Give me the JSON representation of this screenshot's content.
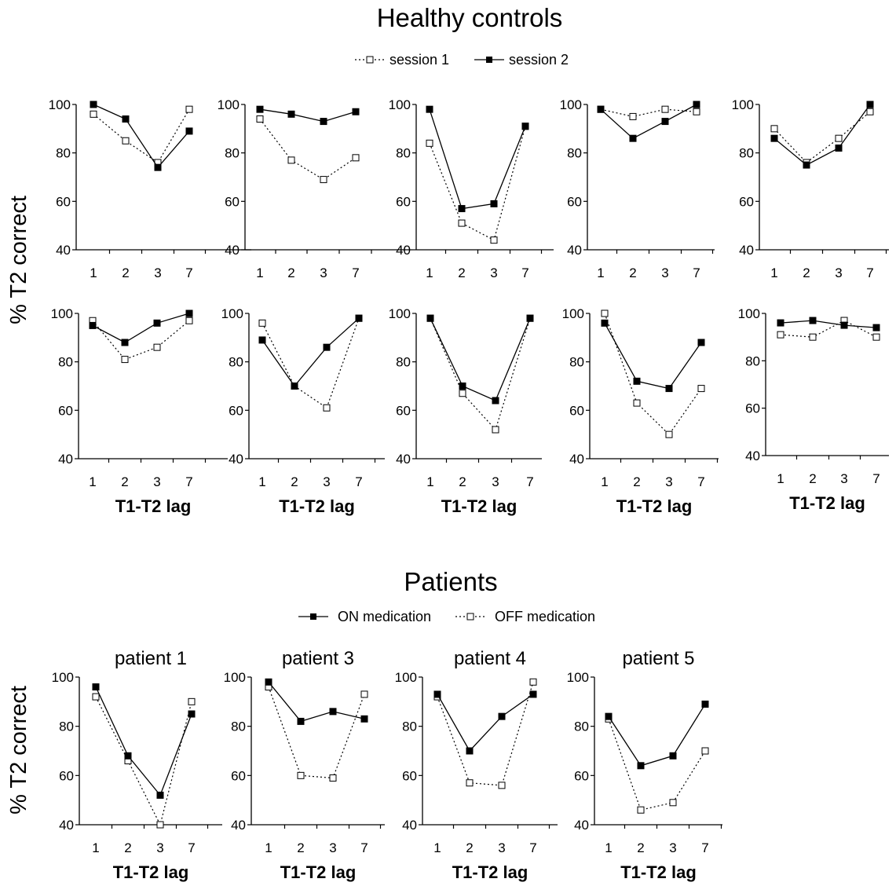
{
  "sections": {
    "controls": {
      "title": "Healthy controls",
      "legend": [
        {
          "label": "session 1",
          "style": "dotted-open"
        },
        {
          "label": "session 2",
          "style": "solid-filled"
        }
      ],
      "ylabel": "% T2 correct"
    },
    "patients": {
      "title": "Patients",
      "legend": [
        {
          "label": "ON medication",
          "style": "solid-filled"
        },
        {
          "label": "OFF medication",
          "style": "dotted-open"
        }
      ],
      "ylabel": "% T2 correct"
    }
  },
  "chart_data": [
    {
      "type": "line",
      "group": "controls",
      "title": "",
      "xlabel": "",
      "ylabel": "% T2 correct",
      "categories": [
        "1",
        "2",
        "3",
        "7"
      ],
      "ylim": [
        40,
        100
      ],
      "yticks": [
        "40",
        "60",
        "80",
        "100"
      ],
      "series": [
        {
          "name": "session 1",
          "values": [
            96,
            85,
            76,
            98
          ]
        },
        {
          "name": "session 2",
          "values": [
            100,
            94,
            74,
            89
          ]
        }
      ]
    },
    {
      "type": "line",
      "group": "controls",
      "title": "",
      "xlabel": "",
      "ylabel": "",
      "categories": [
        "1",
        "2",
        "3",
        "7"
      ],
      "ylim": [
        40,
        100
      ],
      "yticks": [
        "40",
        "60",
        "80",
        "100"
      ],
      "series": [
        {
          "name": "session 1",
          "values": [
            94,
            77,
            69,
            78
          ]
        },
        {
          "name": "session 2",
          "values": [
            98,
            96,
            93,
            97
          ]
        }
      ]
    },
    {
      "type": "line",
      "group": "controls",
      "title": "",
      "xlabel": "",
      "ylabel": "",
      "categories": [
        "1",
        "2",
        "3",
        "7"
      ],
      "ylim": [
        40,
        100
      ],
      "yticks": [
        "40",
        "60",
        "80",
        "100"
      ],
      "series": [
        {
          "name": "session 1",
          "values": [
            84,
            51,
            44,
            91
          ]
        },
        {
          "name": "session 2",
          "values": [
            98,
            57,
            59,
            91
          ]
        }
      ]
    },
    {
      "type": "line",
      "group": "controls",
      "title": "",
      "xlabel": "",
      "ylabel": "",
      "categories": [
        "1",
        "2",
        "3",
        "7"
      ],
      "ylim": [
        40,
        100
      ],
      "yticks": [
        "40",
        "60",
        "80",
        "100"
      ],
      "series": [
        {
          "name": "session 1",
          "values": [
            98,
            95,
            98,
            97
          ]
        },
        {
          "name": "session 2",
          "values": [
            98,
            86,
            93,
            100
          ]
        }
      ]
    },
    {
      "type": "line",
      "group": "controls",
      "title": "",
      "xlabel": "",
      "ylabel": "",
      "categories": [
        "1",
        "2",
        "3",
        "7"
      ],
      "ylim": [
        40,
        100
      ],
      "yticks": [
        "40",
        "60",
        "80",
        "100"
      ],
      "series": [
        {
          "name": "session 1",
          "values": [
            90,
            76,
            86,
            97
          ]
        },
        {
          "name": "session 2",
          "values": [
            86,
            75,
            82,
            100
          ]
        }
      ]
    },
    {
      "type": "line",
      "group": "controls",
      "title": "",
      "xlabel": "T1-T2 lag",
      "ylabel": "% T2 correct",
      "categories": [
        "1",
        "2",
        "3",
        "7"
      ],
      "ylim": [
        40,
        100
      ],
      "yticks": [
        "40",
        "60",
        "80",
        "100"
      ],
      "series": [
        {
          "name": "session 1",
          "values": [
            97,
            81,
            86,
            97
          ]
        },
        {
          "name": "session 2",
          "values": [
            95,
            88,
            96,
            100
          ]
        }
      ]
    },
    {
      "type": "line",
      "group": "controls",
      "title": "",
      "xlabel": "T1-T2 lag",
      "ylabel": "",
      "categories": [
        "1",
        "2",
        "3",
        "7"
      ],
      "ylim": [
        40,
        100
      ],
      "yticks": [
        "40",
        "60",
        "80",
        "100"
      ],
      "series": [
        {
          "name": "session 1",
          "values": [
            96,
            70,
            61,
            98
          ]
        },
        {
          "name": "session 2",
          "values": [
            89,
            70,
            86,
            98
          ]
        }
      ]
    },
    {
      "type": "line",
      "group": "controls",
      "title": "",
      "xlabel": "T1-T2 lag",
      "ylabel": "",
      "categories": [
        "1",
        "2",
        "3",
        "7"
      ],
      "ylim": [
        40,
        100
      ],
      "yticks": [
        "40",
        "60",
        "80",
        "100"
      ],
      "series": [
        {
          "name": "session 1",
          "values": [
            98,
            67,
            52,
            98
          ]
        },
        {
          "name": "session 2",
          "values": [
            98,
            70,
            64,
            98
          ]
        }
      ]
    },
    {
      "type": "line",
      "group": "controls",
      "title": "",
      "xlabel": "T1-T2 lag",
      "ylabel": "",
      "categories": [
        "1",
        "2",
        "3",
        "7"
      ],
      "ylim": [
        40,
        100
      ],
      "yticks": [
        "40",
        "60",
        "80",
        "100"
      ],
      "series": [
        {
          "name": "session 1",
          "values": [
            100,
            63,
            50,
            69
          ]
        },
        {
          "name": "session 2",
          "values": [
            96,
            72,
            69,
            88
          ]
        }
      ]
    },
    {
      "type": "line",
      "group": "controls",
      "title": "",
      "xlabel": "T1-T2 lag",
      "ylabel": "",
      "categories": [
        "1",
        "2",
        "3",
        "7"
      ],
      "ylim": [
        40,
        100
      ],
      "yticks": [
        "40",
        "60",
        "80",
        "100"
      ],
      "series": [
        {
          "name": "session 1",
          "values": [
            91,
            90,
            97,
            90
          ]
        },
        {
          "name": "session 2",
          "values": [
            96,
            97,
            95,
            94
          ]
        }
      ]
    },
    {
      "type": "line",
      "group": "patients",
      "title": "patient 1",
      "xlabel": "T1-T2 lag",
      "ylabel": "% T2 correct",
      "categories": [
        "1",
        "2",
        "3",
        "7"
      ],
      "ylim": [
        40,
        100
      ],
      "yticks": [
        "40",
        "60",
        "80",
        "100"
      ],
      "series": [
        {
          "name": "ON medication",
          "values": [
            96,
            68,
            52,
            85
          ]
        },
        {
          "name": "OFF medication",
          "values": [
            92,
            66,
            40,
            90
          ]
        }
      ]
    },
    {
      "type": "line",
      "group": "patients",
      "title": "patient 3",
      "xlabel": "T1-T2 lag",
      "ylabel": "",
      "categories": [
        "1",
        "2",
        "3",
        "7"
      ],
      "ylim": [
        40,
        100
      ],
      "yticks": [
        "40",
        "60",
        "80",
        "100"
      ],
      "series": [
        {
          "name": "ON medication",
          "values": [
            98,
            82,
            86,
            83
          ]
        },
        {
          "name": "OFF medication",
          "values": [
            96,
            60,
            59,
            93
          ]
        }
      ]
    },
    {
      "type": "line",
      "group": "patients",
      "title": "patient 4",
      "xlabel": "T1-T2 lag",
      "ylabel": "",
      "categories": [
        "1",
        "2",
        "3",
        "7"
      ],
      "ylim": [
        40,
        100
      ],
      "yticks": [
        "40",
        "60",
        "80",
        "100"
      ],
      "series": [
        {
          "name": "ON medication",
          "values": [
            93,
            70,
            84,
            93
          ]
        },
        {
          "name": "OFF medication",
          "values": [
            92,
            57,
            56,
            98
          ]
        }
      ]
    },
    {
      "type": "line",
      "group": "patients",
      "title": "patient 5",
      "xlabel": "T1-T2 lag",
      "ylabel": "",
      "categories": [
        "1",
        "2",
        "3",
        "7"
      ],
      "ylim": [
        40,
        100
      ],
      "yticks": [
        "40",
        "60",
        "80",
        "100"
      ],
      "series": [
        {
          "name": "ON medication",
          "values": [
            84,
            64,
            68,
            89
          ]
        },
        {
          "name": "OFF medication",
          "values": [
            83,
            46,
            49,
            70
          ]
        }
      ]
    }
  ]
}
